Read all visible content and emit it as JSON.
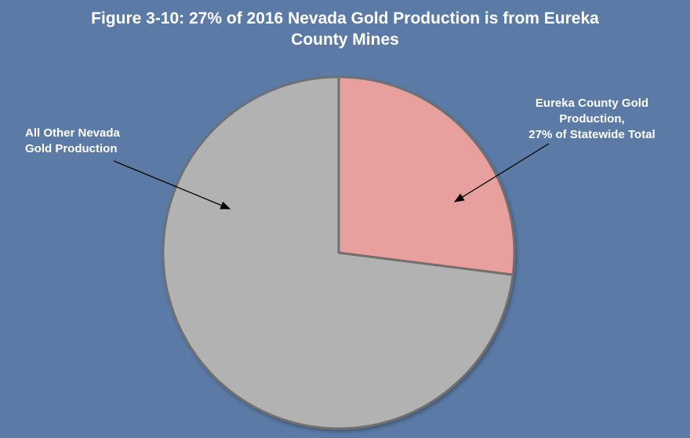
{
  "chart_data": {
    "type": "pie",
    "title_lines": [
      "Figure 3-10: 27% of 2016 Nevada Gold Production is from Eureka",
      "County Mines"
    ],
    "slices": [
      {
        "label_lines": [
          "Eureka County Gold",
          "Production,",
          "27% of Statewide Total"
        ],
        "value": 27,
        "color": "#e8a09e"
      },
      {
        "label_lines": [
          "All Other Nevada",
          "Gold Production"
        ],
        "value": 73,
        "color": "#b2b2b2"
      }
    ],
    "legend": "none",
    "background": "#5b7ba6"
  }
}
